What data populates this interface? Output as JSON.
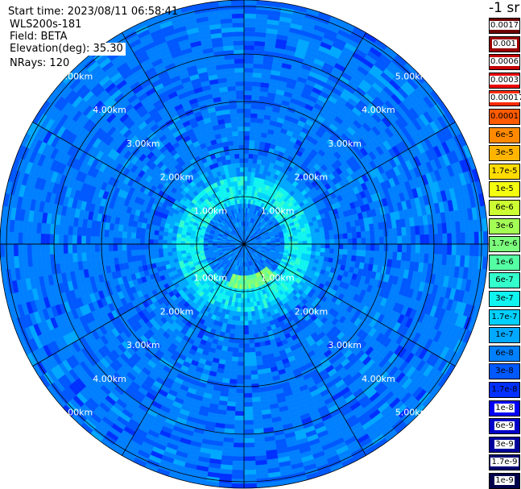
{
  "header": {
    "start_time": "Start time: 2023/08/11 06:58:41",
    "instrument": "WLS200s-181",
    "field": "Field: BETA",
    "elevation": "Elevation(deg): 35.30",
    "nrays": "NRays: 120"
  },
  "colorbar": {
    "unit_label": "-1 sr",
    "entries": [
      {
        "label": "0.0017",
        "color": "#6e0000"
      },
      {
        "label": "0.001",
        "color": "#9a0000"
      },
      {
        "label": "0.0006",
        "color": "#c40000"
      },
      {
        "label": "0.0003",
        "color": "#ec0000"
      },
      {
        "label": "0.00017",
        "color": "#ff2a00"
      },
      {
        "label": "0.0001",
        "color": "#ff5a00"
      },
      {
        "label": "6e-5",
        "color": "#ff8a00"
      },
      {
        "label": "3e-5",
        "color": "#ffb400"
      },
      {
        "label": "1.7e-5",
        "color": "#ffdc00"
      },
      {
        "label": "1e-5",
        "color": "#f4ff10"
      },
      {
        "label": "6e-6",
        "color": "#ccff33"
      },
      {
        "label": "3e-6",
        "color": "#a4ff55"
      },
      {
        "label": "1.7e-6",
        "color": "#7cff7c"
      },
      {
        "label": "1e-6",
        "color": "#55ffa4"
      },
      {
        "label": "6e-7",
        "color": "#33ffcc"
      },
      {
        "label": "3e-7",
        "color": "#10f4f0"
      },
      {
        "label": "1.7e-7",
        "color": "#00d0ff"
      },
      {
        "label": "1e-7",
        "color": "#00a8ff"
      },
      {
        "label": "6e-8",
        "color": "#0080ff"
      },
      {
        "label": "3e-8",
        "color": "#0058ff"
      },
      {
        "label": "1.7e-8",
        "color": "#0030ff"
      },
      {
        "label": "1e-8",
        "color": "#0000f4"
      },
      {
        "label": "6e-9",
        "color": "#0000c8"
      },
      {
        "label": "3e-9",
        "color": "#00009c"
      },
      {
        "label": "1.7e-9",
        "color": "#000072"
      },
      {
        "label": "1e-9",
        "color": "#00004c"
      }
    ]
  },
  "chart_data": {
    "type": "heatmap",
    "projection": "polar (PPI)",
    "field": "BETA",
    "rays": 120,
    "range_rings_km": [
      1,
      2,
      3,
      4,
      5
    ],
    "ring_labels": [
      "1.00km",
      "2.00km",
      "3.00km",
      "4.00km",
      "5.00km"
    ],
    "azimuth_spokes_deg": [
      0,
      30,
      60,
      90,
      120,
      150,
      180,
      210,
      240,
      270,
      300,
      330
    ],
    "max_range_km": 6.3,
    "background_beta": "1.7e-8 to 6e-8",
    "near_range_beta": "1e-7 to 6e-7 within about 1.5 km",
    "feature": {
      "description": "arc of elevated backscatter",
      "azimuth_deg": [
        135,
        200
      ],
      "range_km": 0.8,
      "beta_max": "1.7e-6"
    }
  }
}
